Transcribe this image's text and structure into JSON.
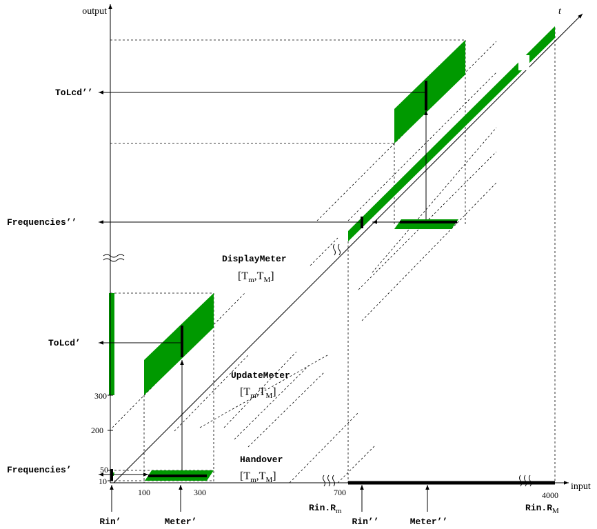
{
  "colors": {
    "green": "#009900",
    "ink": "#000000"
  },
  "axes": {
    "output_label": "output",
    "input_label": "input",
    "t_label": "t"
  },
  "y_ticks": [
    "10",
    "50",
    "200",
    "300"
  ],
  "x_ticks": [
    "100",
    "300",
    "700",
    "4000"
  ],
  "output_labels": {
    "frequencies_prime": "Frequencies’",
    "tolcd_prime": "ToLcd’",
    "frequencies_dprime": "Frequencies’’",
    "tolcd_dprime": "ToLcd’’"
  },
  "input_labels": {
    "rin_prime": "Rin’",
    "meter_prime": "Meter’",
    "rin_dprime": "Rin’’",
    "meter_dprime": "Meter’’",
    "rin_rm_prefix": "Rin.R",
    "rin_rm_sub": "m",
    "rin_rM_prefix": "Rin.R",
    "rin_rM_sub": "M"
  },
  "tasks": [
    {
      "name": "Handover",
      "interval_open": "[T",
      "sub1": "m",
      "sep": ",T",
      "sub2": "M",
      "interval_close": "]"
    },
    {
      "name": "UpdateMeter",
      "interval_open": "[T",
      "sub1": "m",
      "sep": ",T",
      "sub2": "M",
      "interval_close": "]"
    },
    {
      "name": "DisplayMeter",
      "interval_open": "[T",
      "sub1": "m",
      "sep": ",T",
      "sub2": "M",
      "interval_close": "]"
    }
  ]
}
